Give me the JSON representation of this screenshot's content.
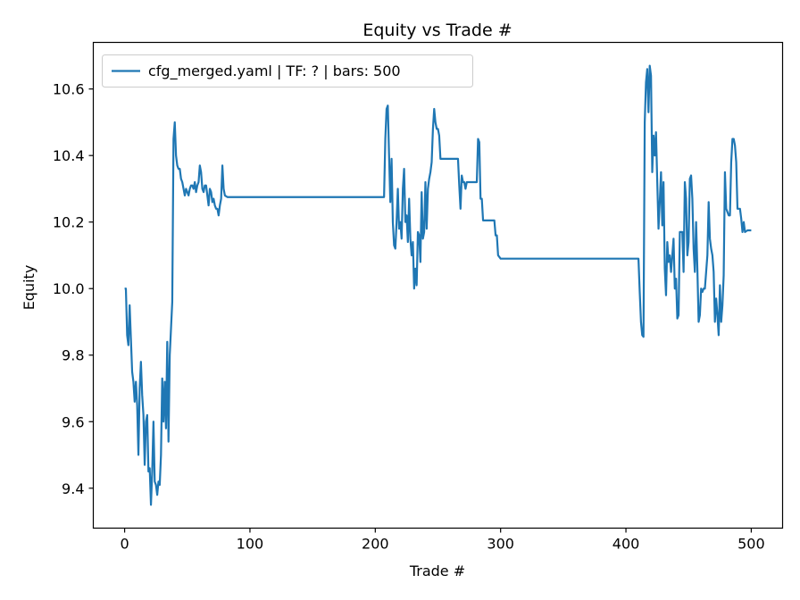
{
  "chart_data": {
    "type": "line",
    "title": "Equity vs Trade #",
    "xlabel": "Trade #",
    "ylabel": "Equity",
    "xlim": [
      -25,
      525
    ],
    "ylim": [
      9.28,
      10.74
    ],
    "xticks": [
      0,
      100,
      200,
      300,
      400,
      500
    ],
    "yticks": [
      9.4,
      9.6,
      9.8,
      10.0,
      10.2,
      10.4,
      10.6
    ],
    "ytick_labels": [
      "9.4",
      "9.6",
      "9.8",
      "10.0",
      "10.2",
      "10.4",
      "10.6"
    ],
    "grid": false,
    "legend_position": "top-left",
    "series": [
      {
        "name": "cfg_merged.yaml | TF: ? | bars: 500",
        "color": "#1f77b4",
        "points": [
          [
            0,
            10.0
          ],
          [
            1,
            10.0
          ],
          [
            2,
            9.86
          ],
          [
            3,
            9.83
          ],
          [
            4,
            9.95
          ],
          [
            5,
            9.85
          ],
          [
            6,
            9.75
          ],
          [
            7,
            9.72
          ],
          [
            8,
            9.66
          ],
          [
            9,
            9.72
          ],
          [
            10,
            9.65
          ],
          [
            11,
            9.5
          ],
          [
            12,
            9.7
          ],
          [
            13,
            9.78
          ],
          [
            14,
            9.68
          ],
          [
            15,
            9.62
          ],
          [
            16,
            9.47
          ],
          [
            17,
            9.6
          ],
          [
            18,
            9.62
          ],
          [
            19,
            9.45
          ],
          [
            20,
            9.46
          ],
          [
            21,
            9.35
          ],
          [
            22,
            9.45
          ],
          [
            23,
            9.6
          ],
          [
            24,
            9.42
          ],
          [
            25,
            9.41
          ],
          [
            26,
            9.38
          ],
          [
            27,
            9.42
          ],
          [
            28,
            9.41
          ],
          [
            29,
            9.5
          ],
          [
            30,
            9.73
          ],
          [
            31,
            9.6
          ],
          [
            32,
            9.72
          ],
          [
            33,
            9.58
          ],
          [
            34,
            9.84
          ],
          [
            35,
            9.54
          ],
          [
            36,
            9.8
          ],
          [
            37,
            9.88
          ],
          [
            38,
            9.96
          ],
          [
            39,
            10.45
          ],
          [
            40,
            10.5
          ],
          [
            41,
            10.4
          ],
          [
            42,
            10.37
          ],
          [
            43,
            10.36
          ],
          [
            44,
            10.36
          ],
          [
            45,
            10.33
          ],
          [
            46,
            10.32
          ],
          [
            47,
            10.3
          ],
          [
            48,
            10.28
          ],
          [
            49,
            10.3
          ],
          [
            50,
            10.29
          ],
          [
            51,
            10.28
          ],
          [
            52,
            10.3
          ],
          [
            53,
            10.31
          ],
          [
            54,
            10.31
          ],
          [
            55,
            10.3
          ],
          [
            56,
            10.32
          ],
          [
            57,
            10.29
          ],
          [
            58,
            10.31
          ],
          [
            59,
            10.32
          ],
          [
            60,
            10.37
          ],
          [
            61,
            10.35
          ],
          [
            62,
            10.3
          ],
          [
            63,
            10.29
          ],
          [
            64,
            10.31
          ],
          [
            65,
            10.31
          ],
          [
            66,
            10.28
          ],
          [
            67,
            10.25
          ],
          [
            68,
            10.3
          ],
          [
            69,
            10.29
          ],
          [
            70,
            10.26
          ],
          [
            71,
            10.27
          ],
          [
            72,
            10.25
          ],
          [
            73,
            10.24
          ],
          [
            74,
            10.24
          ],
          [
            75,
            10.22
          ],
          [
            76,
            10.25
          ],
          [
            77,
            10.27
          ],
          [
            78,
            10.37
          ],
          [
            79,
            10.3
          ],
          [
            80,
            10.28
          ],
          [
            82,
            10.275
          ],
          [
            85,
            10.275
          ],
          [
            100,
            10.275
          ],
          [
            150,
            10.275
          ],
          [
            200,
            10.275
          ],
          [
            207,
            10.275
          ],
          [
            208,
            10.45
          ],
          [
            209,
            10.54
          ],
          [
            210,
            10.55
          ],
          [
            211,
            10.4
          ],
          [
            212,
            10.26
          ],
          [
            213,
            10.39
          ],
          [
            214,
            10.2
          ],
          [
            215,
            10.13
          ],
          [
            216,
            10.12
          ],
          [
            217,
            10.2
          ],
          [
            218,
            10.3
          ],
          [
            219,
            10.18
          ],
          [
            220,
            10.2
          ],
          [
            221,
            10.15
          ],
          [
            222,
            10.3
          ],
          [
            223,
            10.36
          ],
          [
            224,
            10.2
          ],
          [
            225,
            10.22
          ],
          [
            226,
            10.14
          ],
          [
            227,
            10.27
          ],
          [
            228,
            10.15
          ],
          [
            229,
            10.1
          ],
          [
            230,
            10.14
          ],
          [
            231,
            10.0
          ],
          [
            232,
            10.06
          ],
          [
            233,
            10.01
          ],
          [
            234,
            10.17
          ],
          [
            235,
            10.16
          ],
          [
            236,
            10.08
          ],
          [
            237,
            10.29
          ],
          [
            238,
            10.15
          ],
          [
            239,
            10.17
          ],
          [
            240,
            10.32
          ],
          [
            241,
            10.18
          ],
          [
            242,
            10.3
          ],
          [
            243,
            10.33
          ],
          [
            244,
            10.35
          ],
          [
            245,
            10.38
          ],
          [
            246,
            10.48
          ],
          [
            247,
            10.54
          ],
          [
            248,
            10.5
          ],
          [
            249,
            10.48
          ],
          [
            250,
            10.48
          ],
          [
            251,
            10.46
          ],
          [
            252,
            10.39
          ],
          [
            260,
            10.39
          ],
          [
            266,
            10.39
          ],
          [
            267,
            10.31
          ],
          [
            268,
            10.24
          ],
          [
            269,
            10.34
          ],
          [
            270,
            10.32
          ],
          [
            271,
            10.32
          ],
          [
            272,
            10.3
          ],
          [
            273,
            10.32
          ],
          [
            280,
            10.32
          ],
          [
            281,
            10.32
          ],
          [
            282,
            10.45
          ],
          [
            283,
            10.44
          ],
          [
            284,
            10.27
          ],
          [
            285,
            10.27
          ],
          [
            286,
            10.205
          ],
          [
            295,
            10.205
          ],
          [
            296,
            10.16
          ],
          [
            297,
            10.16
          ],
          [
            298,
            10.1
          ],
          [
            299,
            10.095
          ],
          [
            300,
            10.09
          ],
          [
            350,
            10.09
          ],
          [
            400,
            10.09
          ],
          [
            410,
            10.09
          ],
          [
            411,
            9.99
          ],
          [
            412,
            9.9
          ],
          [
            413,
            9.86
          ],
          [
            414,
            9.855
          ],
          [
            415,
            10.5
          ],
          [
            416,
            10.62
          ],
          [
            417,
            10.66
          ],
          [
            418,
            10.53
          ],
          [
            419,
            10.67
          ],
          [
            420,
            10.64
          ],
          [
            421,
            10.35
          ],
          [
            422,
            10.46
          ],
          [
            423,
            10.4
          ],
          [
            424,
            10.47
          ],
          [
            425,
            10.32
          ],
          [
            426,
            10.18
          ],
          [
            427,
            10.26
          ],
          [
            428,
            10.35
          ],
          [
            429,
            10.19
          ],
          [
            430,
            10.32
          ],
          [
            431,
            10.06
          ],
          [
            432,
            9.98
          ],
          [
            433,
            10.14
          ],
          [
            434,
            10.08
          ],
          [
            435,
            10.1
          ],
          [
            436,
            10.05
          ],
          [
            437,
            10.1
          ],
          [
            438,
            10.15
          ],
          [
            439,
            10.0
          ],
          [
            440,
            10.03
          ],
          [
            441,
            9.91
          ],
          [
            442,
            9.92
          ],
          [
            443,
            10.17
          ],
          [
            444,
            10.17
          ],
          [
            445,
            10.17
          ],
          [
            446,
            10.05
          ],
          [
            447,
            10.32
          ],
          [
            448,
            10.27
          ],
          [
            449,
            10.1
          ],
          [
            450,
            10.14
          ],
          [
            451,
            10.33
          ],
          [
            452,
            10.34
          ],
          [
            453,
            10.27
          ],
          [
            454,
            10.12
          ],
          [
            455,
            10.05
          ],
          [
            456,
            10.2
          ],
          [
            457,
            10.06
          ],
          [
            458,
            9.9
          ],
          [
            459,
            9.92
          ],
          [
            460,
            10.0
          ],
          [
            461,
            9.99
          ],
          [
            462,
            10.0
          ],
          [
            463,
            10.0
          ],
          [
            464,
            10.05
          ],
          [
            465,
            10.1
          ],
          [
            466,
            10.26
          ],
          [
            467,
            10.15
          ],
          [
            468,
            10.12
          ],
          [
            469,
            10.1
          ],
          [
            470,
            10.05
          ],
          [
            471,
            9.9
          ],
          [
            472,
            9.97
          ],
          [
            473,
            9.92
          ],
          [
            474,
            9.86
          ],
          [
            475,
            10.01
          ],
          [
            476,
            9.9
          ],
          [
            477,
            9.95
          ],
          [
            478,
            10.04
          ],
          [
            479,
            10.35
          ],
          [
            480,
            10.24
          ],
          [
            481,
            10.23
          ],
          [
            482,
            10.22
          ],
          [
            483,
            10.22
          ],
          [
            484,
            10.38
          ],
          [
            485,
            10.45
          ],
          [
            486,
            10.45
          ],
          [
            487,
            10.43
          ],
          [
            488,
            10.38
          ],
          [
            489,
            10.24
          ],
          [
            490,
            10.24
          ],
          [
            491,
            10.24
          ],
          [
            492,
            10.21
          ],
          [
            493,
            10.17
          ],
          [
            494,
            10.2
          ],
          [
            495,
            10.17
          ],
          [
            497,
            10.175
          ],
          [
            500,
            10.175
          ]
        ]
      }
    ]
  }
}
